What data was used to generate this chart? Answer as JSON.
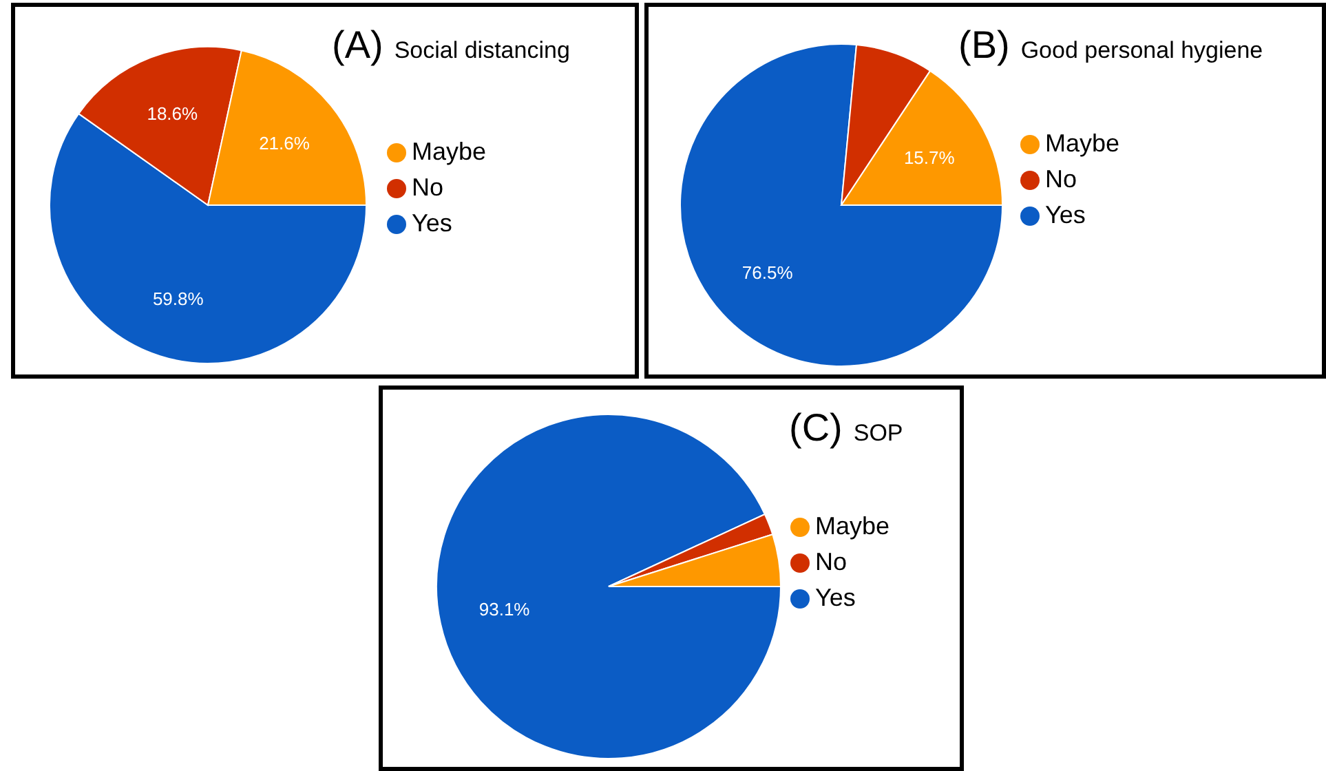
{
  "chart_data": [
    {
      "type": "pie",
      "title": "(A) Social distancing",
      "categories": [
        "Yes",
        "No",
        "Maybe"
      ],
      "values": [
        59.8,
        18.6,
        21.6
      ],
      "colors": [
        "#0b5cc5",
        "#d12f00",
        "#fe9800"
      ],
      "value_labels": [
        "59.8%",
        "18.6%",
        "21.6%"
      ],
      "legend": "right"
    },
    {
      "type": "pie",
      "title": "(B) Good personal hygiene",
      "categories": [
        "Yes",
        "No",
        "Maybe"
      ],
      "values": [
        76.5,
        7.8,
        15.7
      ],
      "colors": [
        "#0b5cc5",
        "#d12f00",
        "#fe9800"
      ],
      "value_labels": [
        "76.5%",
        null,
        "15.7%"
      ],
      "legend": "right"
    },
    {
      "type": "pie",
      "title": "(C) SOP",
      "categories": [
        "Yes",
        "No",
        "Maybe"
      ],
      "values": [
        93.1,
        2.0,
        4.9
      ],
      "colors": [
        "#0b5cc5",
        "#d12f00",
        "#fe9800"
      ],
      "value_labels": [
        "93.1%",
        null,
        null
      ],
      "legend": "right"
    }
  ]
}
